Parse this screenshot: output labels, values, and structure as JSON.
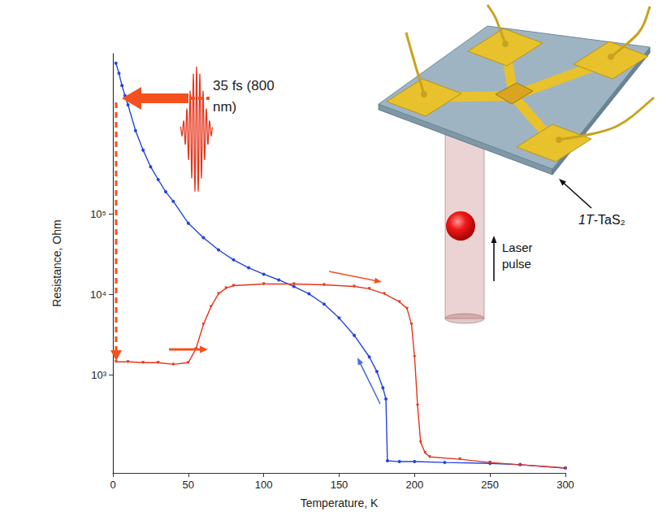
{
  "chart_data": {
    "type": "line",
    "x_label": "Temperature, K",
    "y_label": "Resistance, Ohm",
    "xlim": [
      0,
      300
    ],
    "xticks": [
      0,
      50,
      100,
      150,
      200,
      250,
      300
    ],
    "ylim": [
      60,
      10000000
    ],
    "yticks": [
      {
        "value": 1000,
        "label": "10³"
      },
      {
        "value": 10000,
        "label": "10⁴"
      },
      {
        "value": 100000,
        "label": "10⁵"
      }
    ],
    "log": "y",
    "grid": false,
    "annotations": [
      "35 fs (800 nm)",
      "1T-TaS₂",
      "Laser pulse"
    ],
    "series": [
      {
        "color": "#2444dc",
        "marker": "circle",
        "x": [
          2,
          4,
          6,
          8,
          10,
          15,
          20,
          25,
          30,
          35,
          40,
          50,
          60,
          70,
          80,
          90,
          100,
          110,
          120,
          130,
          140,
          150,
          160,
          170,
          175,
          179,
          181,
          182,
          190,
          200,
          220,
          250,
          270,
          300
        ],
        "values": [
          7600000,
          5700000,
          4000000,
          3000000,
          2300000,
          1100000,
          630000,
          390000,
          270000,
          190000,
          145000,
          77000,
          51000,
          36000,
          27000,
          21500,
          17900,
          15200,
          12600,
          10200,
          7600,
          5100,
          3100,
          1670,
          1100,
          690,
          500,
          85,
          83,
          83,
          81,
          79,
          76,
          69
        ]
      },
      {
        "color": "#e8341c",
        "marker": "triangle_down",
        "x": [
          2,
          10,
          20,
          30,
          40,
          50,
          55,
          60,
          65,
          70,
          75,
          80,
          100,
          120,
          140,
          160,
          170,
          180,
          190,
          195,
          198,
          200,
          202,
          204,
          207,
          210,
          230,
          250,
          270,
          300
        ],
        "values": [
          1450,
          1450,
          1420,
          1420,
          1350,
          1420,
          2100,
          4230,
          7050,
          10200,
          12000,
          12900,
          13500,
          13500,
          13200,
          12600,
          11800,
          10200,
          8100,
          6700,
          4230,
          1670,
          414,
          145,
          107,
          95,
          89,
          81,
          76,
          69
        ]
      }
    ]
  }
}
